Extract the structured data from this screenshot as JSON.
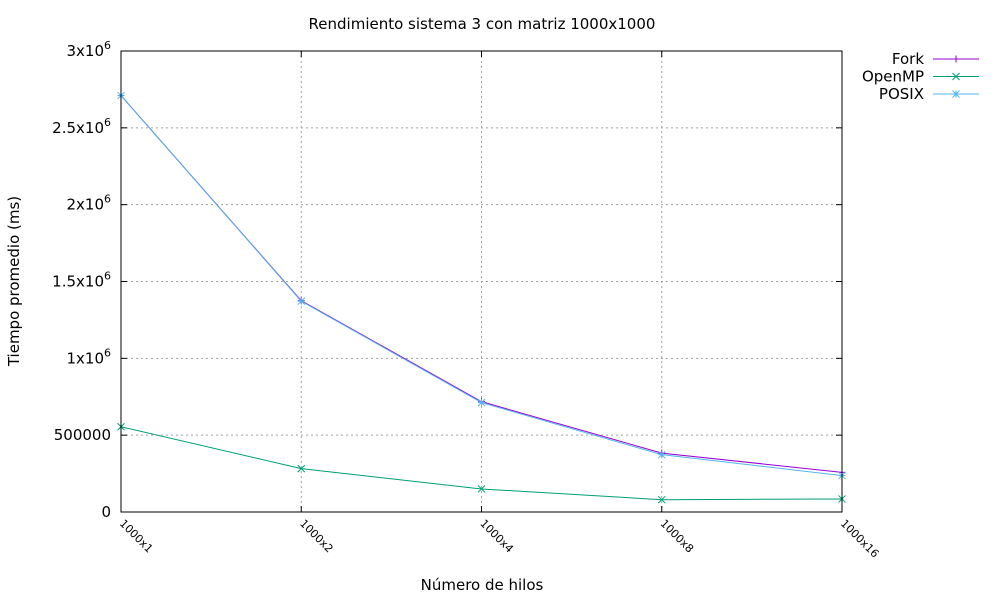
{
  "chart_data": {
    "type": "line",
    "title": "Rendimiento sistema 3 con matriz 1000x1000",
    "xlabel": "Número de hilos",
    "ylabel": "Tiempo promedio (ms)",
    "categories": [
      "1000x1",
      "1000x2",
      "1000x4",
      "1000x8",
      "1000x16"
    ],
    "ylim": [
      0,
      3000000
    ],
    "yticks": [
      {
        "value": 0,
        "label": "0"
      },
      {
        "value": 500000,
        "label": "500000"
      },
      {
        "value": 1000000,
        "label": "1x10",
        "exp": "6"
      },
      {
        "value": 1500000,
        "label": "1.5x10",
        "exp": "6"
      },
      {
        "value": 2000000,
        "label": "2x10",
        "exp": "6"
      },
      {
        "value": 2500000,
        "label": "2.5x10",
        "exp": "6"
      },
      {
        "value": 3000000,
        "label": "3x10",
        "exp": "6"
      }
    ],
    "grid": true,
    "legend_position": "top-right-outside",
    "series": [
      {
        "name": "Fork",
        "color": "#9400d3",
        "marker": "plus",
        "values": [
          2710000,
          1375000,
          718000,
          383000,
          258000
        ]
      },
      {
        "name": "OpenMP",
        "color": "#009e73",
        "marker": "x",
        "values": [
          555000,
          282000,
          150000,
          80000,
          85000
        ]
      },
      {
        "name": "POSIX",
        "color": "#56b4e9",
        "marker": "star",
        "values": [
          2710000,
          1372000,
          712000,
          373000,
          237000
        ]
      }
    ]
  }
}
